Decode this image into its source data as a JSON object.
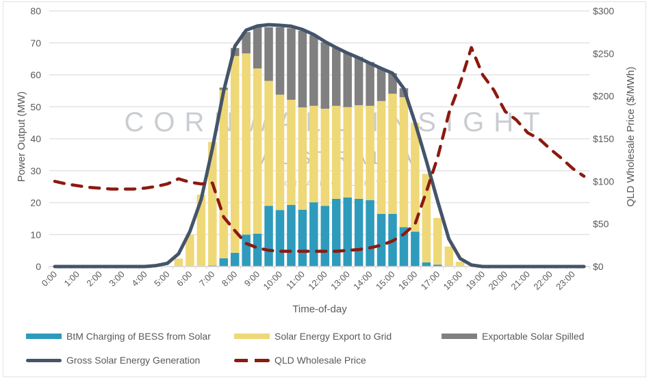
{
  "chart_data": {
    "type": "bar",
    "subtype": "stacked bar with line overlays, dual y-axis",
    "xlabel": "Time-of-day",
    "ylabel": "Power Output (MW)",
    "y2label": "QLD Wholesale Price ($/MWh)",
    "ylim": [
      0,
      80
    ],
    "y2lim": [
      0,
      300
    ],
    "y_ticks": [
      "0",
      "10",
      "20",
      "30",
      "40",
      "50",
      "60",
      "70",
      "80"
    ],
    "y2_ticks": [
      "$0",
      "$50",
      "$100",
      "$150",
      "$200",
      "$250",
      "$300"
    ],
    "x_tick_labels": [
      "0:00",
      "1:00",
      "2:00",
      "3:00",
      "4:00",
      "5:00",
      "6:00",
      "7:00",
      "8:00",
      "9:00",
      "10:00",
      "11:00",
      "12:00",
      "13:00",
      "14:00",
      "15:00",
      "16:00",
      "17:00",
      "18:00",
      "19:00",
      "20:00",
      "21:00",
      "22:00",
      "23:00"
    ],
    "categories": [
      "0:00",
      "0:30",
      "1:00",
      "1:30",
      "2:00",
      "2:30",
      "3:00",
      "3:30",
      "4:00",
      "4:30",
      "5:00",
      "5:30",
      "6:00",
      "6:30",
      "7:00",
      "7:30",
      "8:00",
      "8:30",
      "9:00",
      "9:30",
      "10:00",
      "10:30",
      "11:00",
      "11:30",
      "12:00",
      "12:30",
      "13:00",
      "13:30",
      "14:00",
      "14:30",
      "15:00",
      "15:30",
      "16:00",
      "16:30",
      "17:00",
      "17:30",
      "18:00",
      "18:30",
      "19:00",
      "19:30",
      "20:00",
      "20:30",
      "21:00",
      "21:30",
      "22:00",
      "22:30",
      "23:00",
      "23:30"
    ],
    "grid": "horizontal",
    "legend_placement": "bottom",
    "series": [
      {
        "name": "BtM Charging of BESS from Solar",
        "kind": "bar",
        "axis": "left",
        "color": "#2E9BBC",
        "values": [
          0,
          0,
          0,
          0,
          0,
          0,
          0,
          0,
          0,
          0,
          0,
          0,
          0,
          0,
          0.3,
          2.6,
          4.3,
          10,
          10.3,
          19,
          17.7,
          19.3,
          17.8,
          20.1,
          19,
          21.2,
          21.6,
          21.2,
          20.8,
          16.5,
          16.5,
          12.3,
          10.9,
          1.3,
          0.6,
          0,
          0,
          0,
          0,
          0,
          0,
          0,
          0,
          0,
          0,
          0,
          0,
          0
        ]
      },
      {
        "name": "Solar Energy Export to Grid",
        "kind": "bar",
        "axis": "left",
        "color": "#EFD877",
        "values": [
          0,
          0,
          0,
          0,
          0,
          0,
          0,
          0,
          0,
          0,
          0,
          2.5,
          10,
          22.5,
          38.7,
          52.7,
          61.6,
          56.7,
          51.7,
          39.1,
          36.1,
          32.9,
          32,
          30.2,
          30.4,
          29.1,
          28.3,
          29.3,
          29.5,
          35.3,
          37.6,
          40.7,
          34.1,
          27.7,
          14.6,
          6.3,
          1.5,
          0,
          0,
          0,
          0,
          0,
          0,
          0,
          0,
          0,
          0,
          0
        ]
      },
      {
        "name": "Exportable Solar Spilled",
        "kind": "bar",
        "axis": "left",
        "color": "#808080",
        "values": [
          0,
          0,
          0,
          0,
          0,
          0,
          0,
          0,
          0,
          0,
          0,
          0,
          0,
          0,
          0,
          0.7,
          2.5,
          6.7,
          12.9,
          16.8,
          21.1,
          22.4,
          24,
          22.1,
          20.8,
          18.1,
          17,
          15.1,
          13.7,
          10.2,
          6.4,
          2.8,
          0,
          0,
          0,
          0,
          0,
          0,
          0,
          0,
          0,
          0,
          0,
          0,
          0,
          0,
          0,
          0
        ]
      },
      {
        "name": "Gross Solar Energy Generation",
        "kind": "line",
        "axis": "left",
        "color": "#44546A",
        "values": [
          0,
          0,
          0,
          0,
          0,
          0,
          0,
          0,
          0,
          0.3,
          1,
          4,
          11,
          21,
          37,
          55,
          69,
          74,
          75.3,
          75.7,
          75.5,
          75.2,
          74.2,
          72.6,
          70.4,
          68.5,
          66.8,
          65.3,
          63.6,
          62,
          60.5,
          55.7,
          45,
          33,
          20.5,
          8.6,
          2.5,
          0.5,
          0,
          0,
          0,
          0,
          0,
          0,
          0,
          0,
          0,
          0
        ]
      },
      {
        "name": "QLD Wholesale Price",
        "kind": "dashed-line",
        "axis": "right",
        "color": "#8B1A10",
        "values": [
          100,
          97,
          95,
          93,
          92,
          91,
          91,
          91,
          92,
          94,
          97,
          103,
          99,
          97,
          98,
          58,
          42,
          27,
          22,
          19,
          18,
          18,
          18,
          18,
          18,
          18,
          19,
          20,
          22,
          25,
          30,
          38,
          50,
          88,
          128,
          180,
          215,
          257,
          225,
          207,
          182,
          172,
          157,
          150,
          138,
          127,
          115,
          106
        ]
      }
    ]
  },
  "watermark": {
    "line1": "CORNWALL INSIGHT",
    "line2": "AUSTRALIA",
    "line3": "CREATING CLARITY"
  }
}
